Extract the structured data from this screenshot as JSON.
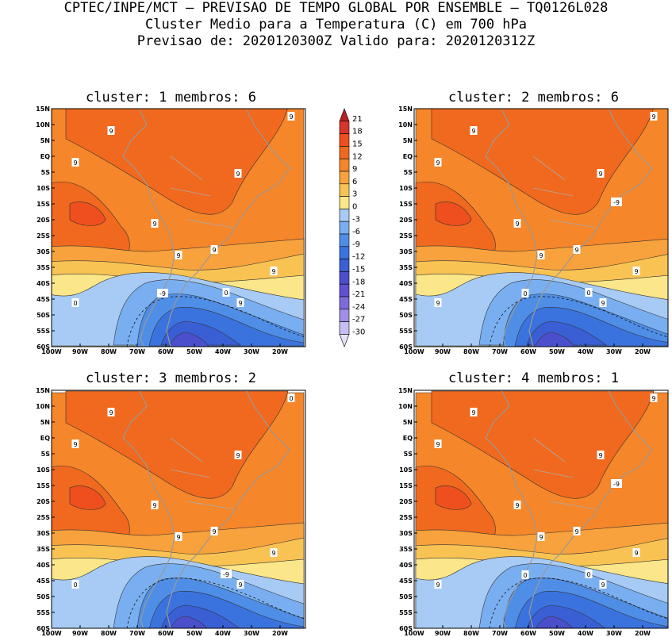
{
  "header": {
    "line1": "CPTEC/INPE/MCT – PREVISAO DE TEMPO GLOBAL POR ENSEMBLE – TQ0126L028",
    "line2": "Cluster Medio para a Temperatura (C) em 700 hPa",
    "line3": "Previsao de: 2020120300Z   Valido para: 2020120312Z"
  },
  "axes": {
    "lat_labels": [
      "15N",
      "10N",
      "5N",
      "EQ",
      "5S",
      "10S",
      "15S",
      "20S",
      "25S",
      "30S",
      "35S",
      "40S",
      "45S",
      "50S",
      "55S",
      "60S"
    ],
    "lon_labels": [
      "100W",
      "90W",
      "80W",
      "70W",
      "60W",
      "50W",
      "40W",
      "30W",
      "20W"
    ]
  },
  "colorbar": {
    "labels": [
      "21",
      "18",
      "15",
      "12",
      "9",
      "6",
      "3",
      "0",
      "-3",
      "-6",
      "-9",
      "-12",
      "-15",
      "-18",
      "-21",
      "-24",
      "-27",
      "-30"
    ],
    "colors": [
      "#b3202a",
      "#d8352a",
      "#ef4f1e",
      "#f0691e",
      "#f5862a",
      "#f7a23c",
      "#f9c354",
      "#fbe689",
      "#a8cbf5",
      "#79aff0",
      "#4f8ee7",
      "#3b73de",
      "#3a5fd4",
      "#4b4fcc",
      "#6150d0",
      "#7f6adb",
      "#a18ee6",
      "#c7bdf2",
      "#e6e2f9"
    ]
  },
  "panels": [
    {
      "title": "cluster: 1   membros: 6",
      "labels": [
        "9",
        "9",
        "9",
        "9",
        "9",
        "9",
        "9",
        "9",
        "9",
        "0",
        "0",
        "-9"
      ]
    },
    {
      "title": "cluster: 2   membros: 6",
      "labels": [
        "9",
        "9",
        "9",
        "9",
        "9",
        "9",
        "9",
        "9",
        "9",
        "9",
        "0",
        "0",
        "-9"
      ]
    },
    {
      "title": "cluster: 3   membros: 2",
      "labels": [
        "9",
        "9",
        "9",
        "9",
        "9",
        "9",
        "9",
        "9",
        "0",
        "0",
        "-9"
      ]
    },
    {
      "title": "cluster: 4   membros: 1",
      "labels": [
        "9",
        "9",
        "9",
        "9",
        "9",
        "9",
        "9",
        "9",
        "9",
        "9",
        "0",
        "0",
        "-9"
      ]
    }
  ]
}
